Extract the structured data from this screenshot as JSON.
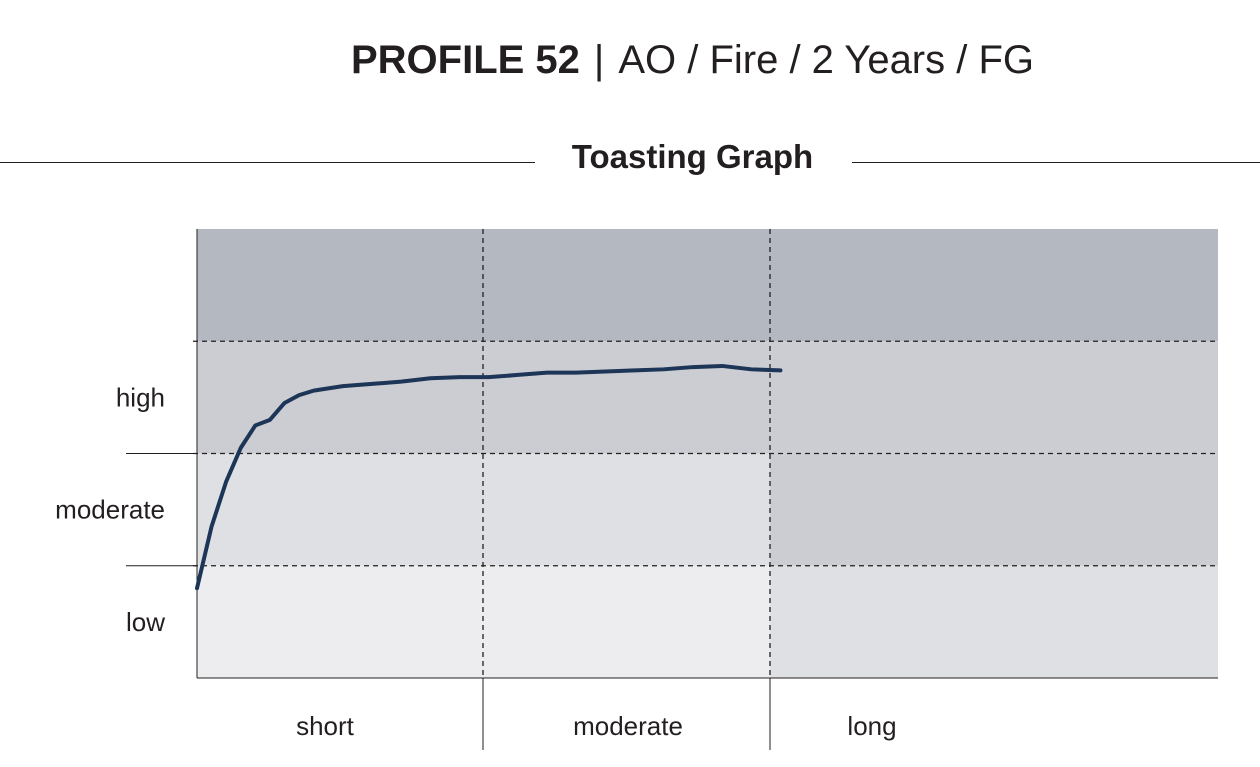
{
  "header": {
    "profile": "PROFILE 52",
    "separator": "|",
    "details": "AO / Fire / 2 Years / FG"
  },
  "chart_data": {
    "type": "line",
    "title": "Toasting Graph",
    "x_categories": [
      "short",
      "moderate",
      "long"
    ],
    "y_categories": [
      "low",
      "moderate",
      "high"
    ],
    "xlim": [
      0,
      3.5
    ],
    "ylim": [
      0,
      4
    ],
    "grid": "dashed",
    "series": [
      {
        "color": "#1d3557",
        "x": [
          0.0,
          0.05,
          0.1,
          0.15,
          0.2,
          0.25,
          0.3,
          0.35,
          0.4,
          0.5,
          0.6,
          0.7,
          0.8,
          0.9,
          1.0,
          1.1,
          1.2,
          1.3,
          1.4,
          1.5,
          1.6,
          1.7,
          1.8,
          1.9,
          2.0
        ],
        "y": [
          0.8,
          1.35,
          1.75,
          2.05,
          2.25,
          2.3,
          2.45,
          2.52,
          2.56,
          2.6,
          2.62,
          2.64,
          2.67,
          2.68,
          2.68,
          2.7,
          2.72,
          2.72,
          2.73,
          2.74,
          2.75,
          2.77,
          2.78,
          2.75,
          2.74
        ]
      }
    ]
  }
}
